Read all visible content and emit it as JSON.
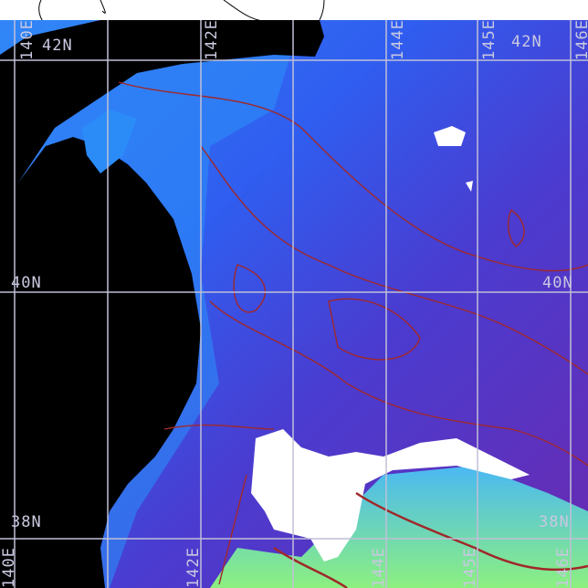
{
  "map": {
    "colors": {
      "land": "#000000",
      "cloud": "#ffffff",
      "ocean_cold": "#5a2aa8",
      "ocean_mid": "#2f5ef0",
      "ocean_warm": "#7cf08a",
      "contour": "#a0282a",
      "grid": "#c0c0d8"
    },
    "lon_labels_top": [
      "140E",
      "142E",
      "144E",
      "145E",
      "146E"
    ],
    "lon_labels_bottom": [
      "140E",
      "142E",
      "144E",
      "145E",
      "146E"
    ],
    "lat_labels": {
      "top_left": "42N",
      "top_right": "42N",
      "mid_left": "40N",
      "mid_right": "40N",
      "bottom_left": "38N",
      "bottom_right": "38N"
    }
  }
}
